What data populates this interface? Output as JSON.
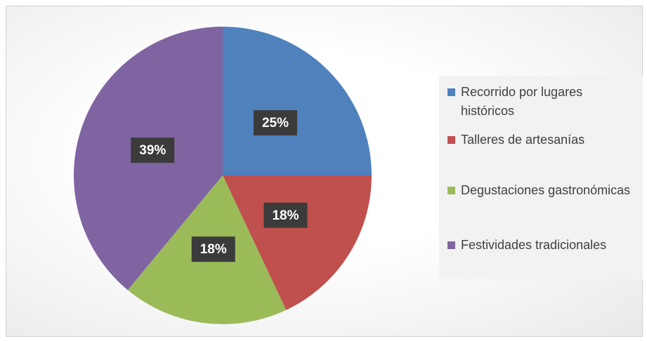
{
  "chart_data": {
    "type": "pie",
    "categories": [
      "Recorrido por lugares históricos",
      "Talleres de artesanías",
      "Degustaciones gastronómicas",
      "Festividades tradicionales"
    ],
    "values": [
      25,
      18,
      18,
      39
    ],
    "value_labels": [
      "25%",
      "18%",
      "18%",
      "39%"
    ],
    "colors": [
      "#4f81bd",
      "#c0504d",
      "#9bbb59",
      "#8064a2"
    ],
    "legend": "right"
  }
}
